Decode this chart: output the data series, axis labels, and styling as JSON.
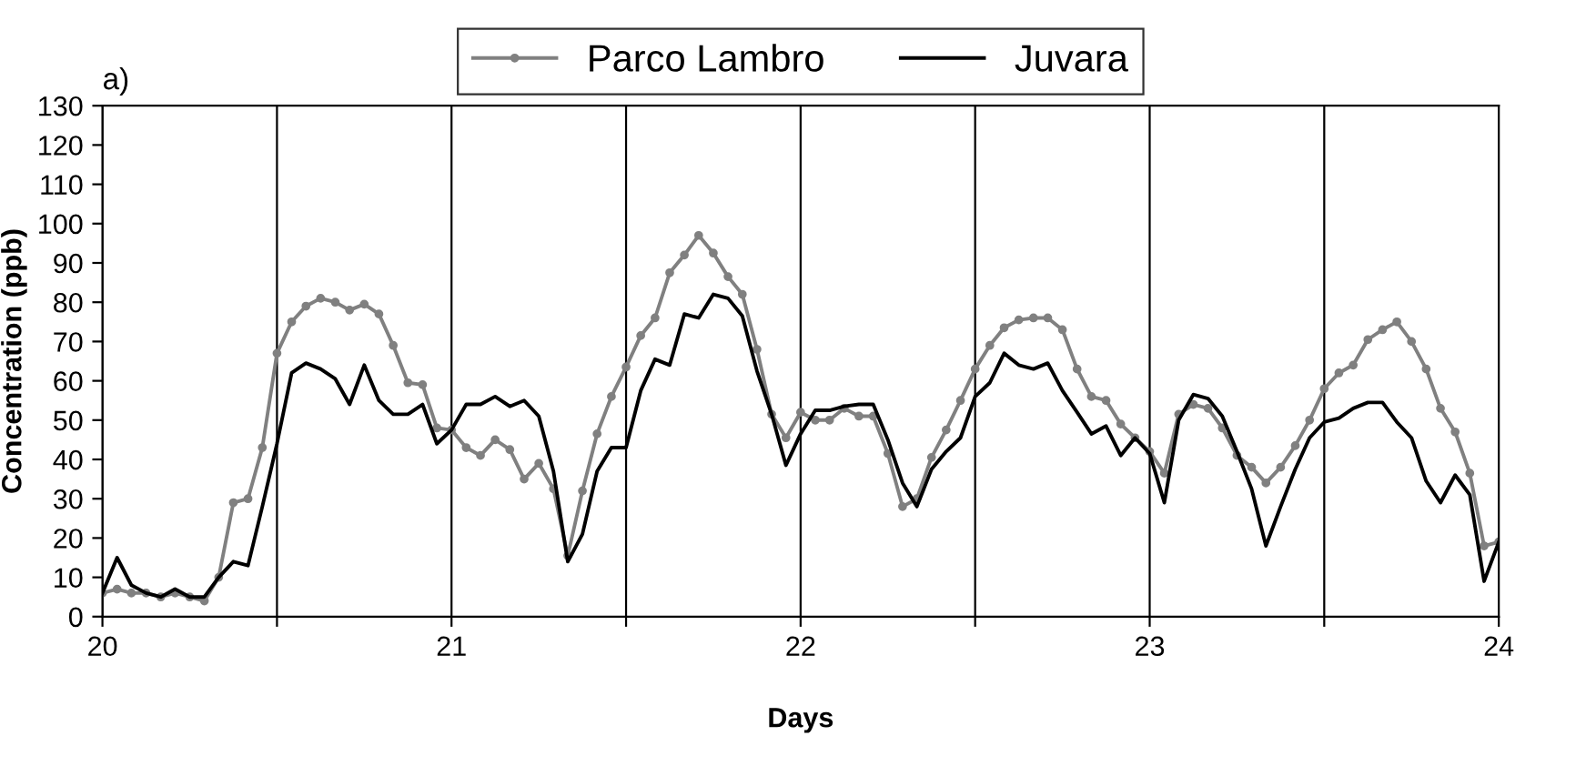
{
  "chart_data": {
    "type": "line",
    "xlabel": "Days",
    "ylabel": "Concentration (ppb)",
    "annotations": [
      "a)"
    ],
    "x": [
      20,
      20.042,
      20.083,
      20.125,
      20.167,
      20.208,
      20.25,
      20.292,
      20.333,
      20.375,
      20.417,
      20.458,
      20.5,
      20.542,
      20.583,
      20.625,
      20.667,
      20.708,
      20.75,
      20.792,
      20.833,
      20.875,
      20.917,
      20.958,
      21,
      21.042,
      21.083,
      21.125,
      21.167,
      21.208,
      21.25,
      21.292,
      21.333,
      21.375,
      21.417,
      21.458,
      21.5,
      21.542,
      21.583,
      21.625,
      21.667,
      21.708,
      21.75,
      21.792,
      21.833,
      21.875,
      21.917,
      21.958,
      22,
      22.042,
      22.083,
      22.125,
      22.167,
      22.208,
      22.25,
      22.292,
      22.333,
      22.375,
      22.417,
      22.458,
      22.5,
      22.542,
      22.583,
      22.625,
      22.667,
      22.708,
      22.75,
      22.792,
      22.833,
      22.875,
      22.917,
      22.958,
      23,
      23.042,
      23.083,
      23.125,
      23.167,
      23.208,
      23.25,
      23.292,
      23.333,
      23.375,
      23.417,
      23.458,
      23.5,
      23.542,
      23.583,
      23.625,
      23.667,
      23.708,
      23.75,
      23.792,
      23.833,
      23.875,
      23.917,
      23.958,
      24
    ],
    "series": [
      {
        "name": "Parco Lambro",
        "color": "#808080",
        "marker": "circle",
        "values": [
          6,
          7,
          6,
          6,
          5,
          6,
          5,
          4,
          10,
          29,
          30,
          43,
          67,
          75,
          79,
          81,
          80,
          78,
          79.5,
          77,
          69,
          59.5,
          59,
          48,
          47.5,
          43,
          41,
          45,
          42.5,
          35,
          39,
          32.5,
          15.5,
          32,
          46.5,
          56,
          63.5,
          71.5,
          76,
          87.5,
          92,
          97,
          92.5,
          86.5,
          82,
          68,
          51.5,
          45.5,
          52,
          50,
          50,
          53,
          51,
          51,
          41.5,
          28,
          30,
          40.5,
          47.5,
          55,
          63,
          69,
          73.5,
          75.5,
          76,
          76,
          73,
          63,
          56,
          55,
          49,
          45.5,
          42,
          36.5,
          51.5,
          54,
          53,
          48,
          41,
          38,
          34,
          38,
          43.5,
          50,
          58,
          62,
          64,
          70.5,
          73,
          75,
          70,
          63,
          53,
          47,
          36.5,
          18,
          19
        ]
      },
      {
        "name": "Juvara",
        "color": "#000000",
        "marker": "none",
        "values": [
          6,
          15,
          8,
          6,
          5,
          7,
          5,
          5,
          10,
          14,
          13,
          28,
          44,
          62,
          64.5,
          63,
          60.5,
          54,
          64,
          55,
          51.5,
          51.5,
          54,
          44,
          47.5,
          54,
          54,
          56,
          53.5,
          55,
          51,
          37,
          14,
          21,
          37,
          43,
          43,
          57.5,
          65.5,
          64,
          77,
          76,
          82,
          81,
          76.5,
          62.5,
          51.5,
          38.5,
          46.5,
          52.5,
          52.5,
          53.5,
          54,
          54,
          45,
          34,
          28,
          37.5,
          42,
          45.5,
          56,
          59.5,
          67,
          64,
          63,
          64.5,
          57.5,
          52,
          46.5,
          48.5,
          41,
          45.5,
          41.5,
          29,
          50,
          56.5,
          55.5,
          51,
          42,
          32.5,
          18,
          28,
          37.5,
          45.5,
          49.5,
          50.5,
          53,
          54.5,
          54.5,
          49.5,
          45.5,
          34.5,
          29,
          36,
          31,
          9,
          19
        ]
      }
    ],
    "xlim": [
      20,
      24
    ],
    "xticks": [
      20,
      {
        "value": 20.5,
        "label": null
      },
      21,
      {
        "value": 21.5,
        "label": null
      },
      22,
      {
        "value": 22.5,
        "label": null
      },
      23,
      {
        "value": 23.5,
        "label": null
      },
      24
    ],
    "ylim": [
      0,
      130
    ],
    "yticks": [
      0,
      10,
      20,
      30,
      40,
      50,
      60,
      70,
      80,
      90,
      100,
      110,
      120,
      130
    ],
    "grid": "x",
    "legend": "top",
    "line_style": "solid"
  }
}
